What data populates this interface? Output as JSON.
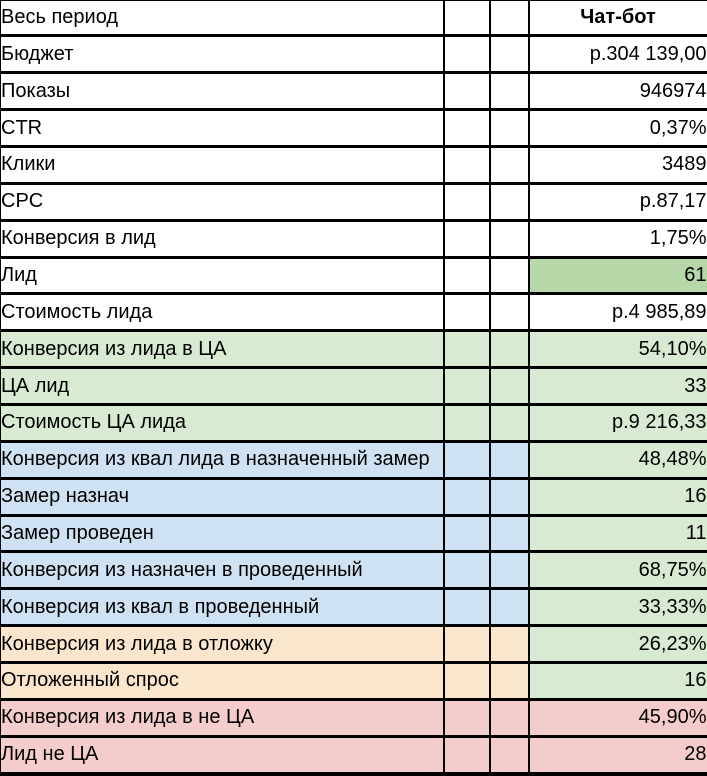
{
  "colors": {
    "white": "#ffffff",
    "green_medium": "#b6d7a8",
    "green_light": "#d9ead3",
    "blue_light": "#cfe2f3",
    "orange_light": "#fce5cd",
    "red_light": "#f4cccc",
    "border": "#000000",
    "text": "#000000"
  },
  "table": {
    "header": {
      "label": "Весь период",
      "value": "Чат-бот"
    },
    "rows": [
      {
        "label": "Бюджет",
        "value": "р.304 139,00",
        "label_bg": "white",
        "value_bg": "white"
      },
      {
        "label": "Показы",
        "value": "946974",
        "label_bg": "white",
        "value_bg": "white"
      },
      {
        "label": "CTR",
        "value": "0,37%",
        "label_bg": "white",
        "value_bg": "white"
      },
      {
        "label": "Клики",
        "value": "3489",
        "label_bg": "white",
        "value_bg": "white"
      },
      {
        "label": "CPC",
        "value": "р.87,17",
        "label_bg": "white",
        "value_bg": "white"
      },
      {
        "label": "Конверсия в лид",
        "value": "1,75%",
        "label_bg": "white",
        "value_bg": "white"
      },
      {
        "label": "Лид",
        "value": "61",
        "label_bg": "white",
        "value_bg": "green_medium"
      },
      {
        "label": "Стоимость лида",
        "value": "р.4 985,89",
        "label_bg": "white",
        "value_bg": "white"
      },
      {
        "label": "Конверсия из лида в ЦА",
        "value": "54,10%",
        "label_bg": "green_light",
        "value_bg": "green_light"
      },
      {
        "label": "ЦА лид",
        "value": "33",
        "label_bg": "green_light",
        "value_bg": "green_light"
      },
      {
        "label": "Стоимость ЦА лида",
        "value": "р.9 216,33",
        "label_bg": "green_light",
        "value_bg": "green_light"
      },
      {
        "label": "Конверсия из квал лида в назначенный замер",
        "value": "48,48%",
        "label_bg": "blue_light",
        "value_bg": "green_light"
      },
      {
        "label": "Замер назнач",
        "value": "16",
        "label_bg": "blue_light",
        "value_bg": "green_light"
      },
      {
        "label": "Замер проведен",
        "value": "11",
        "label_bg": "blue_light",
        "value_bg": "green_light"
      },
      {
        "label": "Конверсия из назначен в проведенный",
        "value": "68,75%",
        "label_bg": "blue_light",
        "value_bg": "green_light"
      },
      {
        "label": "Конверсия из квал в проведенный",
        "value": "33,33%",
        "label_bg": "blue_light",
        "value_bg": "green_light"
      },
      {
        "label": "Конверсия из лида в отложку",
        "value": "26,23%",
        "label_bg": "orange_light",
        "value_bg": "green_light"
      },
      {
        "label": "Отложенный спрос",
        "value": "16",
        "label_bg": "orange_light",
        "value_bg": "green_light"
      },
      {
        "label": "Конверсия из лида в не ЦА",
        "value": "45,90%",
        "label_bg": "red_light",
        "value_bg": "red_light"
      },
      {
        "label": "Лид не ЦА",
        "value": "28",
        "label_bg": "red_light",
        "value_bg": "red_light"
      }
    ]
  }
}
